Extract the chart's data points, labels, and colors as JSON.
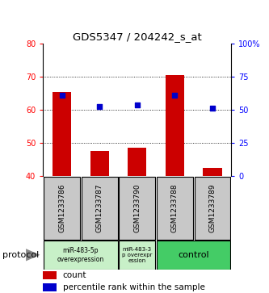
{
  "title": "GDS5347 / 204242_s_at",
  "samples": [
    "GSM1233786",
    "GSM1233787",
    "GSM1233790",
    "GSM1233788",
    "GSM1233789"
  ],
  "bar_values": [
    65.5,
    47.5,
    48.5,
    70.5,
    42.5
  ],
  "dot_values": [
    64.5,
    61.0,
    61.5,
    64.5,
    60.5
  ],
  "ylim_left": [
    40,
    80
  ],
  "ylim_right": [
    0,
    100
  ],
  "yticks_left": [
    40,
    50,
    60,
    70,
    80
  ],
  "ytick_labels_left": [
    "40",
    "50",
    "60",
    "70",
    "80"
  ],
  "yticks_right": [
    0,
    25,
    50,
    75,
    100
  ],
  "ytick_labels_right": [
    "0",
    "25",
    "50",
    "75",
    "100%"
  ],
  "grid_values": [
    50,
    60,
    70
  ],
  "bar_color": "#cc0000",
  "dot_color": "#0000cc",
  "bar_bottom": 40,
  "group1_label": "miR-483-5p\noverexpression",
  "group2_label": "miR-483-3\np overexpr\nession",
  "group3_label": "control",
  "group_light_green": "#c8f0c8",
  "group_dark_green": "#44cc66",
  "protocol_label": "protocol",
  "legend_count_label": "count",
  "legend_percentile_label": "percentile rank within the sample",
  "sample_box_color": "#c8c8c8",
  "background_color": "#ffffff"
}
